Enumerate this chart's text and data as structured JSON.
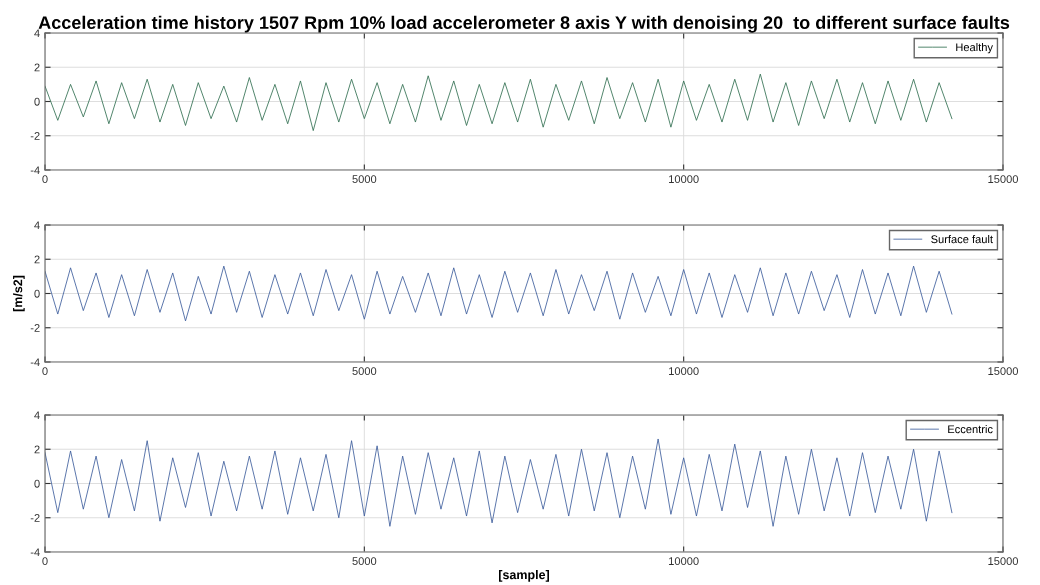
{
  "chart_data": [
    {
      "type": "line",
      "title": "Acceleration time history 1507 Rpm 10% load accelerometer 8 axis Y with denoising 20  to different surface faults",
      "xlim": [
        0,
        15000
      ],
      "ylim": [
        -4,
        4
      ],
      "xticks": [
        0,
        5000,
        10000,
        15000
      ],
      "yticks": [
        -4,
        -2,
        0,
        2,
        4
      ],
      "grid": true,
      "legend": "top right",
      "x": [
        0,
        200,
        400,
        600,
        800,
        1000,
        1200,
        1400,
        1600,
        1800,
        2000,
        2200,
        2400,
        2600,
        2800,
        3000,
        3200,
        3400,
        3600,
        3800,
        4000,
        4200,
        4400,
        4600,
        4800,
        5000,
        5200,
        5400,
        5600,
        5800,
        6000,
        6200,
        6400,
        6600,
        6800,
        7000,
        7200,
        7400,
        7600,
        7800,
        8000,
        8200,
        8400,
        8600,
        8800,
        9000,
        9200,
        9400,
        9600,
        9800,
        10000,
        10200,
        10400,
        10600,
        10800,
        11000,
        11200,
        11400,
        11600,
        11800,
        12000,
        12200,
        12400,
        12600,
        12800,
        13000,
        13200,
        13400,
        13600,
        13800,
        14000,
        14200
      ],
      "series": [
        {
          "name": "Healthy",
          "color": "#2f6e4f",
          "values": [
            0.9,
            -1.1,
            1.0,
            -0.9,
            1.2,
            -1.3,
            1.1,
            -1.0,
            1.3,
            -1.2,
            1.0,
            -1.4,
            1.1,
            -1.0,
            0.9,
            -1.2,
            1.4,
            -1.1,
            1.0,
            -1.3,
            1.2,
            -1.7,
            1.1,
            -1.2,
            1.3,
            -1.0,
            1.1,
            -1.3,
            1.0,
            -1.2,
            1.5,
            -1.1,
            1.2,
            -1.4,
            1.0,
            -1.3,
            1.1,
            -1.2,
            1.3,
            -1.5,
            1.0,
            -1.1,
            1.2,
            -1.3,
            1.4,
            -1.0,
            1.1,
            -1.2,
            1.3,
            -1.5,
            1.2,
            -1.1,
            1.0,
            -1.2,
            1.3,
            -1.1,
            1.6,
            -1.2,
            1.1,
            -1.4,
            1.2,
            -1.0,
            1.3,
            -1.2,
            1.1,
            -1.3,
            1.2,
            -1.1,
            1.3,
            -1.2,
            1.1,
            -1.0
          ]
        }
      ]
    },
    {
      "type": "line",
      "ylabel": "[m/s2]",
      "xlim": [
        0,
        15000
      ],
      "ylim": [
        -4,
        4
      ],
      "xticks": [
        0,
        5000,
        10000,
        15000
      ],
      "yticks": [
        -4,
        -2,
        0,
        2,
        4
      ],
      "grid": true,
      "legend": "top right",
      "x": [
        0,
        200,
        400,
        600,
        800,
        1000,
        1200,
        1400,
        1600,
        1800,
        2000,
        2200,
        2400,
        2600,
        2800,
        3000,
        3200,
        3400,
        3600,
        3800,
        4000,
        4200,
        4400,
        4600,
        4800,
        5000,
        5200,
        5400,
        5600,
        5800,
        6000,
        6200,
        6400,
        6600,
        6800,
        7000,
        7200,
        7400,
        7600,
        7800,
        8000,
        8200,
        8400,
        8600,
        8800,
        9000,
        9200,
        9400,
        9600,
        9800,
        10000,
        10200,
        10400,
        10600,
        10800,
        11000,
        11200,
        11400,
        11600,
        11800,
        12000,
        12200,
        12400,
        12600,
        12800,
        13000,
        13200,
        13400,
        13600,
        13800,
        14000,
        14200
      ],
      "series": [
        {
          "name": "Surface fault",
          "color": "#3b5b9b",
          "values": [
            1.3,
            -1.2,
            1.5,
            -1.0,
            1.2,
            -1.4,
            1.1,
            -1.3,
            1.4,
            -1.1,
            1.2,
            -1.6,
            1.0,
            -1.2,
            1.6,
            -1.1,
            1.3,
            -1.4,
            1.1,
            -1.2,
            1.2,
            -1.3,
            1.4,
            -1.0,
            1.1,
            -1.5,
            1.3,
            -1.2,
            1.0,
            -1.1,
            1.2,
            -1.3,
            1.5,
            -1.2,
            1.1,
            -1.4,
            1.3,
            -1.1,
            1.2,
            -1.3,
            1.4,
            -1.2,
            1.1,
            -1.0,
            1.3,
            -1.5,
            1.2,
            -1.1,
            1.0,
            -1.3,
            1.4,
            -1.2,
            1.2,
            -1.4,
            1.1,
            -1.1,
            1.5,
            -1.3,
            1.2,
            -1.2,
            1.3,
            -1.0,
            1.1,
            -1.4,
            1.4,
            -1.2,
            1.2,
            -1.3,
            1.6,
            -1.1,
            1.3,
            -1.2
          ]
        }
      ]
    },
    {
      "type": "line",
      "xlabel": "[sample]",
      "xlim": [
        0,
        15000
      ],
      "ylim": [
        -4,
        4
      ],
      "xticks": [
        0,
        5000,
        10000,
        15000
      ],
      "yticks": [
        -4,
        -2,
        0,
        2,
        4
      ],
      "grid": true,
      "legend": "top right",
      "x": [
        0,
        200,
        400,
        600,
        800,
        1000,
        1200,
        1400,
        1600,
        1800,
        2000,
        2200,
        2400,
        2600,
        2800,
        3000,
        3200,
        3400,
        3600,
        3800,
        4000,
        4200,
        4400,
        4600,
        4800,
        5000,
        5200,
        5400,
        5600,
        5800,
        6000,
        6200,
        6400,
        6600,
        6800,
        7000,
        7200,
        7400,
        7600,
        7800,
        8000,
        8200,
        8400,
        8600,
        8800,
        9000,
        9200,
        9400,
        9600,
        9800,
        10000,
        10200,
        10400,
        10600,
        10800,
        11000,
        11200,
        11400,
        11600,
        11800,
        12000,
        12200,
        12400,
        12600,
        12800,
        13000,
        13200,
        13400,
        13600,
        13800,
        14000,
        14200
      ],
      "series": [
        {
          "name": "Eccentric",
          "color": "#3b5b9b",
          "values": [
            1.8,
            -1.7,
            1.9,
            -1.5,
            1.6,
            -2.0,
            1.4,
            -1.6,
            2.5,
            -2.2,
            1.5,
            -1.4,
            1.8,
            -1.9,
            1.3,
            -1.6,
            1.6,
            -1.5,
            1.9,
            -1.8,
            1.5,
            -1.6,
            1.7,
            -2.0,
            2.5,
            -1.9,
            2.2,
            -2.5,
            1.6,
            -1.8,
            1.8,
            -1.5,
            1.5,
            -1.9,
            1.9,
            -2.3,
            1.6,
            -1.7,
            1.4,
            -1.5,
            1.7,
            -1.9,
            2.0,
            -1.6,
            1.8,
            -2.0,
            1.6,
            -1.5,
            2.6,
            -1.8,
            1.5,
            -1.9,
            1.7,
            -1.6,
            2.3,
            -1.4,
            1.9,
            -2.5,
            1.6,
            -1.8,
            2.0,
            -1.6,
            1.5,
            -1.9,
            1.8,
            -1.7,
            1.6,
            -1.5,
            2.0,
            -2.2,
            1.9,
            -1.7
          ]
        }
      ]
    }
  ]
}
